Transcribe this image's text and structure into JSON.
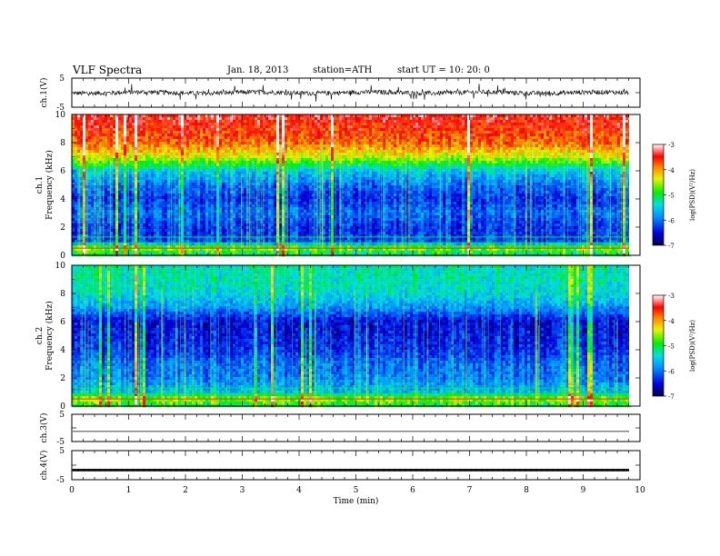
{
  "header": {
    "title": "VLF  Spectra",
    "date": "Jan. 18, 2013",
    "station": "station=ATH",
    "start_ut": "start  UT  =    10: 20: 0"
  },
  "chart_data": [
    {
      "type": "line",
      "id": "ch1-waveform",
      "ylabel": "ch.1(V)",
      "ylim": [
        -5,
        5
      ],
      "yticks": [
        "5",
        "-5"
      ],
      "xlim": [
        0,
        10
      ],
      "note_values": "dense noisy waveform, amplitude roughly ±1.5 V around 0"
    },
    {
      "type": "heatmap",
      "id": "ch1-spectrogram",
      "ylabel_top": "ch.1",
      "ylabel": "Frequency  (kHz)",
      "ylim": [
        0,
        10
      ],
      "yticks": [
        "0",
        "2",
        "4",
        "6",
        "8",
        "10"
      ],
      "xlim": [
        0,
        9.8
      ],
      "colorbar": {
        "label": "log(PSD)(V²/Hz)",
        "range": [
          -7,
          -3
        ],
        "ticks": [
          "-3",
          "-4",
          "-5",
          "-6",
          "-7"
        ]
      },
      "profile_kHz_logPSD": [
        [
          0,
          -5.2
        ],
        [
          0.5,
          -4.6
        ],
        [
          1,
          -6.2
        ],
        [
          2,
          -6.3
        ],
        [
          3,
          -6.0
        ],
        [
          4,
          -6.3
        ],
        [
          5,
          -6.0
        ],
        [
          6,
          -5.5
        ],
        [
          6.5,
          -4.9
        ],
        [
          7,
          -4.4
        ],
        [
          8,
          -3.8
        ],
        [
          9,
          -3.6
        ],
        [
          10,
          -3.4
        ]
      ]
    },
    {
      "type": "heatmap",
      "id": "ch2-spectrogram",
      "ylabel_top": "ch.2",
      "ylabel": "Frequency  (kHz)",
      "ylim": [
        0,
        10
      ],
      "yticks": [
        "0",
        "2",
        "4",
        "6",
        "8",
        "10"
      ],
      "xlim": [
        0,
        9.8
      ],
      "colorbar": {
        "label": "log(PSD)(V²/Hz)",
        "range": [
          -7,
          -3
        ],
        "ticks": [
          "-3",
          "-4",
          "-5",
          "-6",
          "-7"
        ]
      },
      "profile_kHz_logPSD": [
        [
          0,
          -5.0
        ],
        [
          0.5,
          -4.5
        ],
        [
          1,
          -5.6
        ],
        [
          2,
          -5.9
        ],
        [
          3,
          -6.0
        ],
        [
          4,
          -6.3
        ],
        [
          5,
          -6.4
        ],
        [
          6,
          -6.5
        ],
        [
          7,
          -5.8
        ],
        [
          8,
          -5.4
        ],
        [
          9,
          -5.3
        ],
        [
          10,
          -5.3
        ]
      ]
    },
    {
      "type": "line",
      "id": "ch3-waveform",
      "ylabel": "ch.3(V)",
      "ylim": [
        -5,
        5
      ],
      "yticks": [
        "5",
        "-5"
      ],
      "xlim": [
        0,
        10
      ],
      "level_V": -1.3
    },
    {
      "type": "line",
      "id": "ch4-waveform",
      "ylabel": "ch.4(V)",
      "ylim": [
        -5,
        5
      ],
      "yticks": [
        "5",
        "-5"
      ],
      "xlim": [
        0,
        10
      ],
      "level_V": -1.7
    }
  ],
  "x_axis": {
    "label": "Time  (min)",
    "ticks": [
      "0",
      "1",
      "2",
      "3",
      "4",
      "5",
      "6",
      "7",
      "8",
      "9",
      "10"
    ]
  }
}
